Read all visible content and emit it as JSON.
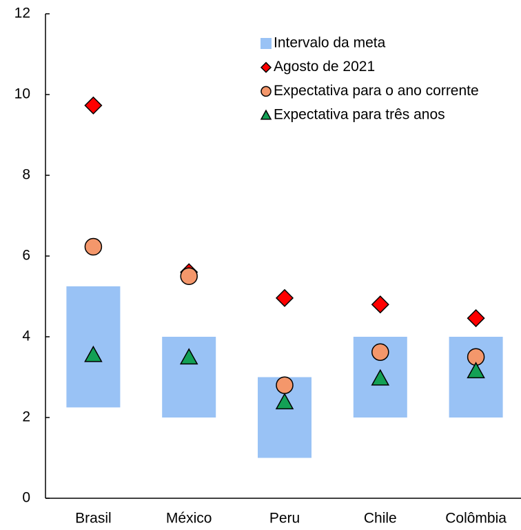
{
  "chart_data": {
    "type": "range_scatter",
    "categories": [
      "Brasil",
      "México",
      "Peru",
      "Chile",
      "Colômbia"
    ],
    "ylim": [
      0,
      12
    ],
    "yticks": [
      0,
      2,
      4,
      6,
      8,
      10,
      12
    ],
    "grid": false,
    "legend": "top-right",
    "series": [
      {
        "name": "Intervalo da meta",
        "marker": "range",
        "color": "#99c2f5",
        "low": [
          2.25,
          2,
          1,
          2,
          2
        ],
        "high": [
          5.25,
          4,
          3,
          4,
          4
        ]
      },
      {
        "name": "Agosto de 2021",
        "marker": "diamond",
        "color": "#ff0000",
        "values": [
          9.73,
          5.6,
          4.96,
          4.8,
          4.46
        ]
      },
      {
        "name": "Expectativa para o ano corrente",
        "marker": "circle",
        "color": "#f4976b",
        "values": [
          6.23,
          5.5,
          2.8,
          3.62,
          3.5
        ]
      },
      {
        "name": "Expectativa para três anos",
        "marker": "triangle",
        "color": "#13a055",
        "values": [
          3.55,
          3.49,
          2.38,
          2.97,
          3.15
        ]
      }
    ]
  }
}
